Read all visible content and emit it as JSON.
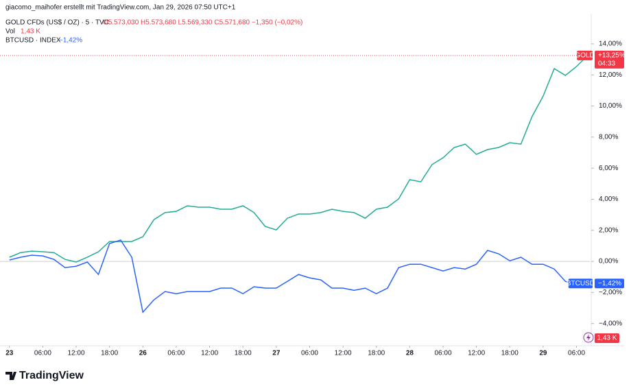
{
  "header": "giacomo_maihofer erstellt mit TradingView.com, Jan 29, 2026 07:50 UTC+1",
  "legend": {
    "main": "GOLD CFDs (US$ / OZ) · 5 · TVC",
    "ohlc": "O5.573,030  H5.573,680  L5.569,330  C5.571,680  −1,350 (−0,02%)",
    "vol_name": "Vol",
    "vol_value": "1,43 K",
    "compare_name": "BTCUSD · INDEX",
    "compare_value": "−1,42%"
  },
  "countdown": "04:33",
  "logo": "TradingView",
  "chart_data": {
    "type": "line",
    "x": [
      0,
      2,
      4,
      6,
      8,
      10,
      12,
      14,
      16,
      18,
      20,
      22,
      24,
      26,
      28,
      30,
      32,
      34,
      36,
      38,
      40,
      42,
      44,
      46,
      48,
      50,
      52,
      54,
      56,
      58,
      60,
      62,
      64,
      66,
      68,
      70,
      72,
      74,
      76,
      78,
      80,
      82,
      84,
      86,
      88,
      90,
      92,
      94,
      96,
      98,
      100,
      102,
      104
    ],
    "series": [
      {
        "name": "GOLD",
        "color": "#22ab94",
        "badge_color": "#f23645",
        "last_label": "+13,25%",
        "values": [
          0.27,
          0.57,
          0.66,
          0.62,
          0.57,
          0.13,
          -0.04,
          0.27,
          0.62,
          1.28,
          1.28,
          1.28,
          1.59,
          2.69,
          3.14,
          3.22,
          3.58,
          3.49,
          3.49,
          3.36,
          3.36,
          3.58,
          3.14,
          2.25,
          2.03,
          2.78,
          3.05,
          3.05,
          3.14,
          3.36,
          3.22,
          3.14,
          2.78,
          3.36,
          3.49,
          4.02,
          5.26,
          5.12,
          6.23,
          6.67,
          7.33,
          7.55,
          6.89,
          7.2,
          7.33,
          7.64,
          7.55,
          9.32,
          10.64,
          12.41,
          11.97,
          12.54,
          13.25
        ]
      },
      {
        "name": "BTCUSD",
        "color": "#2962ff",
        "badge_color": "#2962ff",
        "last_label": "−1,42%",
        "values": [
          0.09,
          0.27,
          0.4,
          0.35,
          0.13,
          -0.4,
          -0.31,
          -0.04,
          -0.84,
          1.15,
          1.37,
          0.27,
          -3.27,
          -2.47,
          -1.94,
          -2.08,
          -1.94,
          -1.94,
          -1.94,
          -1.72,
          -1.72,
          -2.08,
          -1.63,
          -1.72,
          -1.72,
          -1.28,
          -0.84,
          -1.06,
          -1.19,
          -1.72,
          -1.72,
          -1.86,
          -1.72,
          -2.08,
          -1.72,
          -0.4,
          -0.18,
          -0.18,
          -0.4,
          -0.62,
          -0.4,
          -0.49,
          -0.18,
          0.71,
          0.49,
          0.04,
          0.27,
          -0.18,
          -0.18,
          -0.49,
          -1.28,
          -1.5,
          -1.42
        ]
      }
    ],
    "xlim": [
      -1.7,
      104.4
    ],
    "xticks": [
      {
        "value": 0,
        "label": "23"
      },
      {
        "value": 6,
        "label": "06:00"
      },
      {
        "value": 12,
        "label": "12:00"
      },
      {
        "value": 18,
        "label": "18:00"
      },
      {
        "value": 24,
        "label": "26"
      },
      {
        "value": 30,
        "label": "06:00"
      },
      {
        "value": 36,
        "label": "12:00"
      },
      {
        "value": 42,
        "label": "18:00"
      },
      {
        "value": 48,
        "label": "27"
      },
      {
        "value": 54,
        "label": "06:00"
      },
      {
        "value": 60,
        "label": "12:00"
      },
      {
        "value": 66,
        "label": "18:00"
      },
      {
        "value": 72,
        "label": "28"
      },
      {
        "value": 78,
        "label": "06:00"
      },
      {
        "value": 84,
        "label": "12:00"
      },
      {
        "value": 90,
        "label": "18:00"
      },
      {
        "value": 96,
        "label": "29"
      },
      {
        "value": 102,
        "label": "06:00"
      }
    ],
    "ylim": [
      -5.25,
      15.94
    ],
    "yticks": [
      {
        "value": -4,
        "label": "−4,00%"
      },
      {
        "value": -2,
        "label": "−2,00%"
      },
      {
        "value": 0,
        "label": "0,00%"
      },
      {
        "value": 2,
        "label": "2,00%"
      },
      {
        "value": 4,
        "label": "4,00%"
      },
      {
        "value": 6,
        "label": "6,00%"
      },
      {
        "value": 8,
        "label": "8,00%"
      },
      {
        "value": 10,
        "label": "10,00%"
      },
      {
        "value": 12,
        "label": "12,00%"
      },
      {
        "value": 14,
        "label": "14,00%"
      }
    ],
    "grid": false
  }
}
